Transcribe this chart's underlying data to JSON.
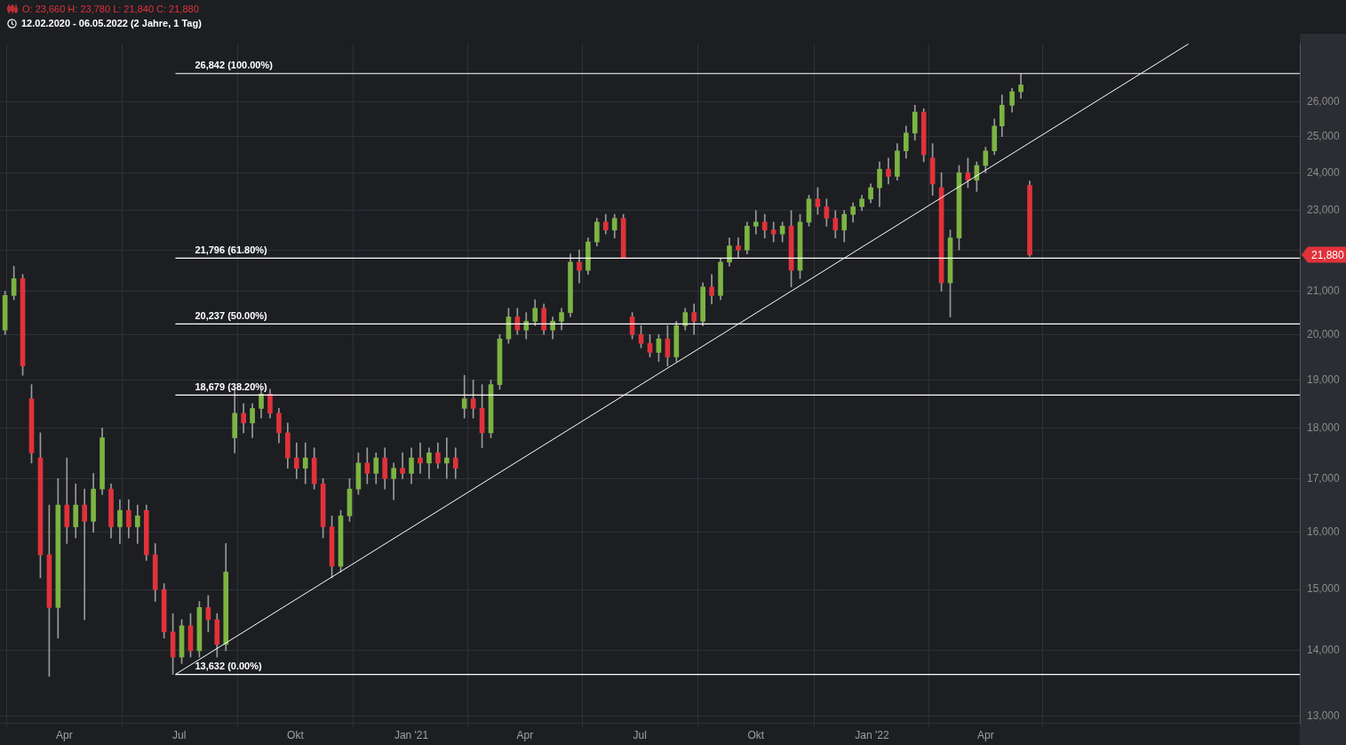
{
  "chart_data": {
    "type": "candlestick",
    "title": "O: 23,660  H: 23,780  L: 21,840  C: 21,880",
    "subtitle": "12.02.2020 - 06.05.2022  (2 Jahre, 1 Tag)",
    "series": [
      {
        "x": [
          "2020-02-14",
          "2020-02-21",
          "2020-02-28",
          "2020-03-06",
          "2020-03-13",
          "2020-03-20",
          "2020-03-27",
          "2020-04-03",
          "2020-04-10",
          "2020-04-17",
          "2020-04-24",
          "2020-05-01",
          "2020-05-08",
          "2020-05-15",
          "2020-05-22",
          "2020-05-29",
          "2020-06-05",
          "2020-06-12",
          "2020-06-19",
          "2020-06-26",
          "2020-07-03",
          "2020-07-10",
          "2020-07-17",
          "2020-07-24",
          "2020-07-31",
          "2020-08-07",
          "2020-08-14",
          "2020-08-21",
          "2020-08-28",
          "2020-09-04",
          "2020-09-11",
          "2020-09-18",
          "2020-09-25",
          "2020-10-02",
          "2020-10-09",
          "2020-10-16",
          "2020-10-23",
          "2020-10-30",
          "2020-11-06",
          "2020-11-13",
          "2020-11-20",
          "2020-11-27",
          "2020-12-04",
          "2020-12-11",
          "2020-12-18",
          "2020-12-25",
          "2021-01-01",
          "2021-01-08",
          "2021-01-15",
          "2021-01-22",
          "2021-01-29",
          "2021-02-05",
          "2021-02-12",
          "2021-02-19",
          "2021-02-26",
          "2021-03-05",
          "2021-03-12",
          "2021-03-19",
          "2021-03-26",
          "2021-04-02",
          "2021-04-09",
          "2021-04-16",
          "2021-04-23",
          "2021-04-30",
          "2021-05-07",
          "2021-05-14",
          "2021-05-21",
          "2021-05-28",
          "2021-06-04",
          "2021-06-11",
          "2021-06-18",
          "2021-06-25",
          "2021-07-02",
          "2021-07-09",
          "2021-07-16",
          "2021-07-23",
          "2021-07-30",
          "2021-08-06",
          "2021-08-13",
          "2021-08-20",
          "2021-08-27",
          "2021-09-03",
          "2021-09-10",
          "2021-09-17",
          "2021-09-24",
          "2021-10-01",
          "2021-10-08",
          "2021-10-15",
          "2021-10-22",
          "2021-10-29",
          "2021-11-05",
          "2021-11-12",
          "2021-11-19",
          "2021-11-26",
          "2021-12-03",
          "2021-12-10",
          "2021-12-17",
          "2021-12-24",
          "2021-12-31",
          "2022-01-07",
          "2022-01-14",
          "2022-01-21",
          "2022-01-28",
          "2022-02-04",
          "2022-02-11",
          "2022-02-18",
          "2022-02-25",
          "2022-03-04",
          "2022-03-11",
          "2022-03-18",
          "2022-03-25",
          "2022-04-01",
          "2022-04-08",
          "2022-04-14",
          "2022-04-22",
          "2022-04-29",
          "2022-05-06"
        ],
        "ohlc": [
          [
            20100,
            21000,
            20000,
            20900
          ],
          [
            20900,
            21600,
            20800,
            21300
          ],
          [
            21300,
            21400,
            19100,
            19300
          ],
          [
            18600,
            18900,
            17300,
            17500
          ],
          [
            17400,
            17900,
            15200,
            15600
          ],
          [
            15600,
            16500,
            13600,
            14700
          ],
          [
            14700,
            17000,
            14200,
            16500
          ],
          [
            16500,
            17400,
            15800,
            16100
          ],
          [
            16100,
            16900,
            15900,
            16500
          ],
          [
            16500,
            16800,
            14500,
            16200
          ],
          [
            16200,
            17100,
            16000,
            16800
          ],
          [
            16800,
            18000,
            16700,
            17800
          ],
          [
            16800,
            16900,
            15900,
            16100
          ],
          [
            16100,
            16600,
            15800,
            16400
          ],
          [
            16400,
            16600,
            15900,
            16100
          ],
          [
            16100,
            16500,
            15800,
            16300
          ],
          [
            16400,
            16500,
            15500,
            15600
          ],
          [
            15600,
            15800,
            14800,
            15000
          ],
          [
            15000,
            15100,
            14200,
            14300
          ],
          [
            14300,
            14600,
            13632,
            13900
          ],
          [
            13900,
            14500,
            13800,
            14400
          ],
          [
            14400,
            14600,
            13900,
            14000
          ],
          [
            14000,
            14800,
            13900,
            14700
          ],
          [
            14700,
            14900,
            14300,
            14500
          ],
          [
            14500,
            14600,
            13900,
            14100
          ],
          [
            14100,
            15800,
            14000,
            15300
          ],
          [
            17800,
            18800,
            17500,
            18300
          ],
          [
            18300,
            18500,
            17900,
            18100
          ],
          [
            18100,
            18500,
            17800,
            18400
          ],
          [
            18400,
            18800,
            18200,
            18700
          ],
          [
            18700,
            18800,
            18200,
            18300
          ],
          [
            18300,
            18400,
            17700,
            17900
          ],
          [
            17900,
            18100,
            17200,
            17400
          ],
          [
            17400,
            17700,
            17000,
            17200
          ],
          [
            17200,
            17700,
            16900,
            17400
          ],
          [
            17400,
            17600,
            16800,
            16900
          ],
          [
            16900,
            17000,
            15900,
            16100
          ],
          [
            16100,
            16300,
            15200,
            15400
          ],
          [
            15400,
            16400,
            15300,
            16300
          ],
          [
            16300,
            17000,
            16200,
            16800
          ],
          [
            16800,
            17500,
            16700,
            17300
          ],
          [
            17300,
            17600,
            16900,
            17100
          ],
          [
            17100,
            17500,
            16900,
            17400
          ],
          [
            17400,
            17600,
            16800,
            17000
          ],
          [
            17000,
            17300,
            16600,
            17200
          ],
          [
            17200,
            17500,
            17000,
            17100
          ],
          [
            17100,
            17600,
            16900,
            17400
          ],
          [
            17400,
            17700,
            17100,
            17300
          ],
          [
            17300,
            17600,
            17000,
            17500
          ],
          [
            17500,
            17700,
            17200,
            17300
          ],
          [
            17300,
            17800,
            17000,
            17400
          ],
          [
            17400,
            17600,
            17000,
            17200
          ],
          [
            18400,
            19100,
            18200,
            18600
          ],
          [
            18600,
            19000,
            18200,
            18400
          ],
          [
            18400,
            18900,
            17600,
            17900
          ],
          [
            17900,
            19000,
            17800,
            18900
          ],
          [
            18900,
            20000,
            18800,
            19900
          ],
          [
            19900,
            20600,
            19800,
            20400
          ],
          [
            20400,
            20600,
            20000,
            20100
          ],
          [
            20100,
            20500,
            19900,
            20300
          ],
          [
            20300,
            20800,
            20200,
            20600
          ],
          [
            20600,
            20700,
            20000,
            20100
          ],
          [
            20100,
            20400,
            19900,
            20300
          ],
          [
            20300,
            20600,
            20100,
            20500
          ],
          [
            20500,
            21900,
            20400,
            21700
          ],
          [
            21700,
            22000,
            21200,
            21500
          ],
          [
            21500,
            22300,
            21400,
            22200
          ],
          [
            22200,
            22800,
            22100,
            22700
          ],
          [
            22700,
            22900,
            22400,
            22500
          ],
          [
            22500,
            22900,
            22300,
            22800
          ],
          [
            22800,
            22900,
            21800,
            21800
          ],
          [
            20400,
            20500,
            19900,
            20000
          ],
          [
            20000,
            20200,
            19700,
            19800
          ],
          [
            19800,
            20000,
            19500,
            19600
          ],
          [
            19600,
            20000,
            19400,
            19900
          ],
          [
            19900,
            20200,
            19300,
            19500
          ],
          [
            19500,
            20300,
            19400,
            20200
          ],
          [
            20200,
            20600,
            20100,
            20500
          ],
          [
            20500,
            20700,
            20000,
            20300
          ],
          [
            20300,
            21200,
            20200,
            21100
          ],
          [
            21100,
            21400,
            20700,
            20900
          ],
          [
            20900,
            21800,
            20800,
            21700
          ],
          [
            21700,
            22300,
            21600,
            22100
          ],
          [
            22100,
            22300,
            21800,
            22000
          ],
          [
            22000,
            22700,
            21900,
            22600
          ],
          [
            22600,
            23000,
            22400,
            22700
          ],
          [
            22700,
            22900,
            22300,
            22500
          ],
          [
            22500,
            22700,
            22200,
            22400
          ],
          [
            22400,
            22700,
            22200,
            22600
          ],
          [
            22600,
            23000,
            21100,
            21500
          ],
          [
            21500,
            22900,
            21300,
            22700
          ],
          [
            22700,
            23400,
            22600,
            23300
          ],
          [
            23300,
            23600,
            22900,
            23100
          ],
          [
            23100,
            23300,
            22600,
            22800
          ],
          [
            22800,
            23000,
            22300,
            22500
          ],
          [
            22500,
            23000,
            22200,
            22900
          ],
          [
            22900,
            23200,
            22700,
            23100
          ],
          [
            23100,
            23400,
            23000,
            23300
          ],
          [
            23300,
            23700,
            23200,
            23600
          ],
          [
            23600,
            24300,
            23100,
            24100
          ],
          [
            24100,
            24400,
            23700,
            23900
          ],
          [
            23900,
            24800,
            23800,
            24600
          ],
          [
            24600,
            25300,
            24400,
            25100
          ],
          [
            25100,
            25900,
            24900,
            25700
          ],
          [
            25700,
            25800,
            24300,
            24500
          ],
          [
            24400,
            24800,
            23400,
            23700
          ],
          [
            23600,
            24000,
            21000,
            21200
          ],
          [
            21200,
            22500,
            20400,
            22300
          ],
          [
            22300,
            24200,
            22000,
            24000
          ],
          [
            24000,
            24400,
            23600,
            23800
          ],
          [
            23800,
            24300,
            23500,
            24200
          ],
          [
            24200,
            24700,
            24000,
            24600
          ],
          [
            24600,
            25500,
            24500,
            25300
          ],
          [
            25300,
            26200,
            25000,
            25900
          ],
          [
            25900,
            26400,
            25700,
            26300
          ],
          [
            26300,
            26842,
            26100,
            26500
          ],
          [
            23660,
            23780,
            21840,
            21880
          ]
        ],
        "colors": [
          "#7cb342",
          "#7cb342",
          "#e0323a",
          "#e0323a",
          "#e0323a",
          "#e0323a",
          "#7cb342",
          "#e0323a",
          "#7cb342",
          "#e0323a",
          "#7cb342",
          "#7cb342",
          "#e0323a",
          "#7cb342",
          "#e0323a",
          "#7cb342",
          "#e0323a",
          "#e0323a",
          "#e0323a",
          "#e0323a",
          "#7cb342",
          "#e0323a",
          "#7cb342",
          "#e0323a",
          "#e0323a",
          "#7cb342",
          "#7cb342",
          "#e0323a",
          "#7cb342",
          "#7cb342",
          "#e0323a",
          "#e0323a",
          "#e0323a",
          "#e0323a",
          "#7cb342",
          "#e0323a",
          "#e0323a",
          "#e0323a",
          "#7cb342",
          "#7cb342",
          "#7cb342",
          "#e0323a",
          "#7cb342",
          "#e0323a",
          "#7cb342",
          "#e0323a",
          "#7cb342",
          "#e0323a",
          "#7cb342",
          "#e0323a",
          "#7cb342",
          "#e0323a",
          "#7cb342",
          "#e0323a",
          "#e0323a",
          "#7cb342",
          "#7cb342",
          "#7cb342",
          "#e0323a",
          "#7cb342",
          "#7cb342",
          "#e0323a",
          "#7cb342",
          "#7cb342",
          "#7cb342",
          "#e0323a",
          "#7cb342",
          "#7cb342",
          "#e0323a",
          "#7cb342",
          "#e0323a",
          "#e0323a",
          "#e0323a",
          "#e0323a",
          "#7cb342",
          "#e0323a",
          "#7cb342",
          "#7cb342",
          "#e0323a",
          "#7cb342",
          "#e0323a",
          "#7cb342",
          "#7cb342",
          "#e0323a",
          "#7cb342",
          "#7cb342",
          "#e0323a",
          "#e0323a",
          "#7cb342",
          "#e0323a",
          "#7cb342",
          "#7cb342",
          "#e0323a",
          "#e0323a",
          "#e0323a",
          "#7cb342",
          "#7cb342",
          "#7cb342",
          "#7cb342",
          "#7cb342",
          "#e0323a",
          "#7cb342",
          "#7cb342",
          "#7cb342",
          "#e0323a",
          "#e0323a",
          "#e0323a",
          "#7cb342",
          "#7cb342",
          "#e0323a",
          "#7cb342",
          "#7cb342",
          "#7cb342",
          "#7cb342",
          "#7cb342",
          "#7cb342",
          "#e0323a"
        ]
      },
      {
        "type": "line",
        "x": [
          "2020-06-28",
          "2022-09-09"
        ],
        "values": [
          13632,
          27760
        ],
        "color": "#ffffff"
      }
    ],
    "xlim": [
      "2020-02-10",
      "2022-12-06"
    ],
    "xticks": [
      {
        "value": "2020-04-01",
        "label": "Apr"
      },
      {
        "value": "2020-07-01",
        "label": "Jul"
      },
      {
        "value": "2020-10-01",
        "label": "Okt"
      },
      {
        "value": "2021-01-01",
        "label": "Jan '21"
      },
      {
        "value": "2021-04-01",
        "label": "Apr"
      },
      {
        "value": "2021-07-01",
        "label": "Jul"
      },
      {
        "value": "2021-10-01",
        "label": "Okt"
      },
      {
        "value": "2022-01-01",
        "label": "Jan '22"
      },
      {
        "value": "2022-04-01",
        "label": "Apr"
      }
    ],
    "ylim": [
      12900,
      27760
    ],
    "yticks": [
      {
        "value": 13000,
        "label": "13,000"
      },
      {
        "value": 14000,
        "label": "14,000"
      },
      {
        "value": 15000,
        "label": "15,000"
      },
      {
        "value": 16000,
        "label": "16,000"
      },
      {
        "value": 17000,
        "label": "17,000"
      },
      {
        "value": 18000,
        "label": "18,000"
      },
      {
        "value": 19000,
        "label": "19,000"
      },
      {
        "value": 20000,
        "label": "20,000"
      },
      {
        "value": 21000,
        "label": "21,000"
      },
      {
        "value": 22000,
        "label": null
      },
      {
        "value": 23000,
        "label": "23,000"
      },
      {
        "value": 24000,
        "label": "24,000"
      },
      {
        "value": 25000,
        "label": "25,000"
      },
      {
        "value": 26000,
        "label": "26,000"
      }
    ],
    "log": "y",
    "grid": true,
    "legend": false,
    "ref_lines": [
      {
        "axis": "y",
        "value": 26842,
        "label": "26,842 (100.00%)",
        "color": "#ffffff"
      },
      {
        "axis": "y",
        "value": 21796,
        "label": "21,796 (61.80%)",
        "color": "#ffffff"
      },
      {
        "axis": "y",
        "value": 20237,
        "label": "20,237 (50.00%)",
        "color": "#ffffff"
      },
      {
        "axis": "y",
        "value": 18679,
        "label": "18,679 (38.20%)",
        "color": "#ffffff"
      },
      {
        "axis": "y",
        "value": 13632,
        "label": "13,632 (0.00%)",
        "color": "#ffffff"
      }
    ],
    "annotations": [
      "21,880"
    ]
  }
}
